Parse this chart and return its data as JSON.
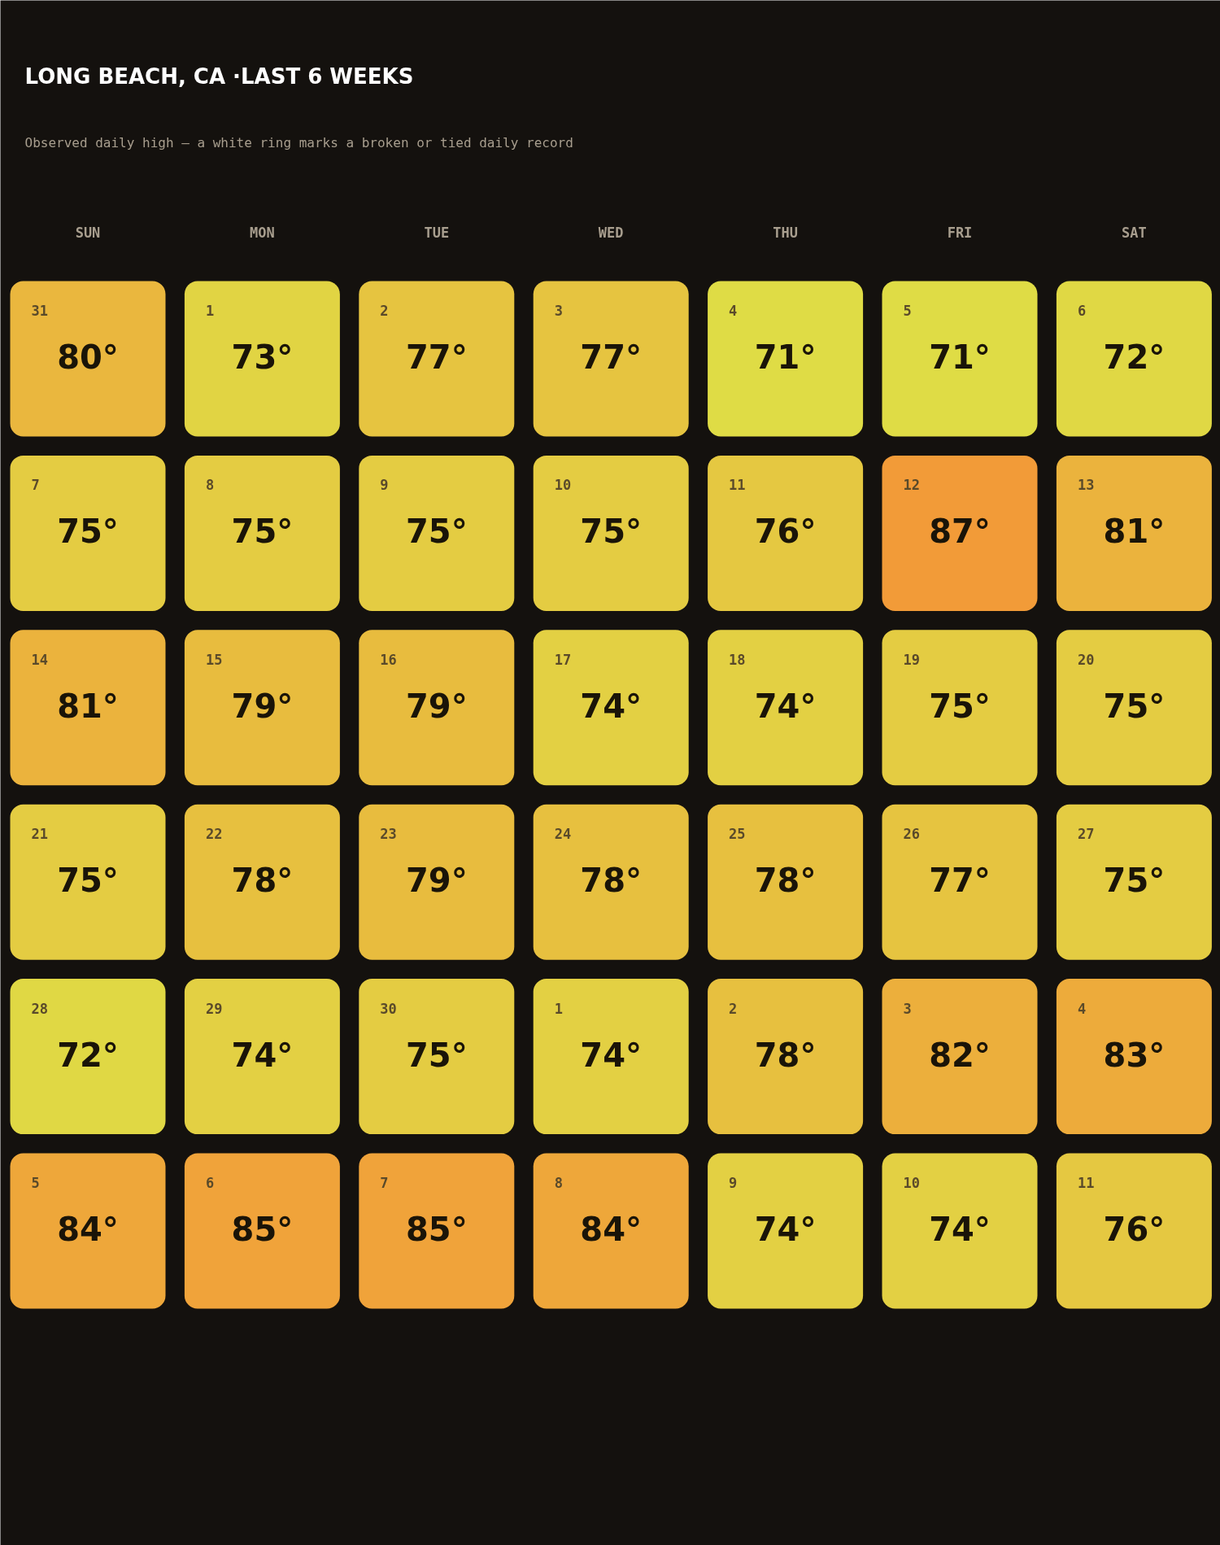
{
  "chart_data": {
    "type": "heatmap",
    "title": "LONG BEACH, CA ·LAST 6 WEEKS",
    "subtitle": "Observed daily high — a white ring marks a broken or tied daily record",
    "categories": [
      "SUN",
      "MON",
      "TUE",
      "WED",
      "THU",
      "FRI",
      "SAT"
    ],
    "y_categories": [
      null,
      null,
      null,
      null,
      null,
      null
    ],
    "cells": [
      [
        80,
        73,
        77,
        77,
        71,
        71,
        72
      ],
      [
        75,
        75,
        75,
        75,
        76,
        87,
        81
      ],
      [
        81,
        79,
        79,
        74,
        74,
        75,
        75
      ],
      [
        75,
        78,
        79,
        78,
        78,
        77,
        75
      ],
      [
        72,
        74,
        75,
        74,
        78,
        82,
        83
      ],
      [
        84,
        85,
        85,
        84,
        74,
        74,
        76
      ]
    ],
    "cell_labels": [
      [
        "80°",
        "73°",
        "77°",
        "77°",
        "71°",
        "71°",
        "72°"
      ],
      [
        "75°",
        "75°",
        "75°",
        "75°",
        "76°",
        "87°",
        "81°"
      ],
      [
        "81°",
        "79°",
        "79°",
        "74°",
        "74°",
        "75°",
        "75°"
      ],
      [
        "75°",
        "78°",
        "79°",
        "78°",
        "78°",
        "77°",
        "75°"
      ],
      [
        "72°",
        "74°",
        "75°",
        "74°",
        "78°",
        "82°",
        "83°"
      ],
      [
        "84°",
        "85°",
        "85°",
        "84°",
        "74°",
        "74°",
        "76°"
      ]
    ],
    "annotations": [
      "31",
      "1",
      "2",
      "3",
      "4",
      "5",
      "6",
      "7",
      "8",
      "9",
      "10",
      "11",
      "12",
      "13",
      "14",
      "15",
      "16",
      "17",
      "18",
      "19",
      "20",
      "21",
      "22",
      "23",
      "24",
      "25",
      "26",
      "27",
      "28",
      "29",
      "30",
      "1",
      "2",
      "3",
      "4",
      "5",
      "6",
      "7",
      "8",
      "9",
      "10",
      "11"
    ]
  }
}
